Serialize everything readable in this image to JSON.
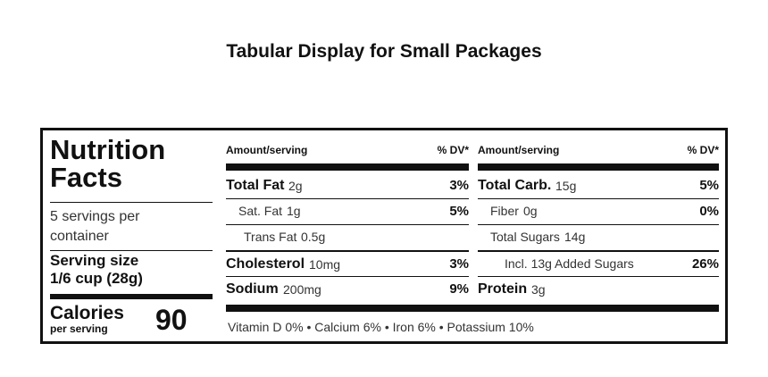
{
  "header": {
    "title": "Tabular Display for Small Packages"
  },
  "label": {
    "heading": "Nutrition Facts",
    "servings": "5 servings per container",
    "serving_size_label": "Serving size",
    "serving_size": "1/6 cup (28g)",
    "calories_label": "Calories",
    "calories_sub": "per serving",
    "calories": "90",
    "columns": [
      {
        "amount_header": "Amount/serving",
        "dv_header": "% DV*",
        "rows": [
          {
            "name": "Total Fat",
            "amount": "2g",
            "dv": "3%"
          },
          {
            "name": "Sat. Fat",
            "amount": "1g",
            "dv": "5%"
          },
          {
            "name": "Trans Fat",
            "amount": "0.5g"
          },
          {
            "name": "Cholesterol",
            "amount": "10mg",
            "dv": "3%"
          },
          {
            "name": "Sodium",
            "amount": "200mg",
            "dv": "9%"
          }
        ]
      },
      {
        "amount_header": "Amount/serving",
        "dv_header": "% DV*",
        "rows": [
          {
            "name": "Total Carb.",
            "amount": "15g",
            "dv": "5%"
          },
          {
            "name": "Fiber",
            "amount": "0g",
            "dv": "0%"
          },
          {
            "name": "Total Sugars",
            "amount": "14g"
          },
          {
            "name": "Incl. 13g Added Sugars",
            "dv": "26%"
          },
          {
            "name": "Protein",
            "amount": "3g"
          }
        ]
      }
    ],
    "footer": "Vitamin D 0% • Calcium 6% • Iron 6% • Potassium 10%"
  }
}
